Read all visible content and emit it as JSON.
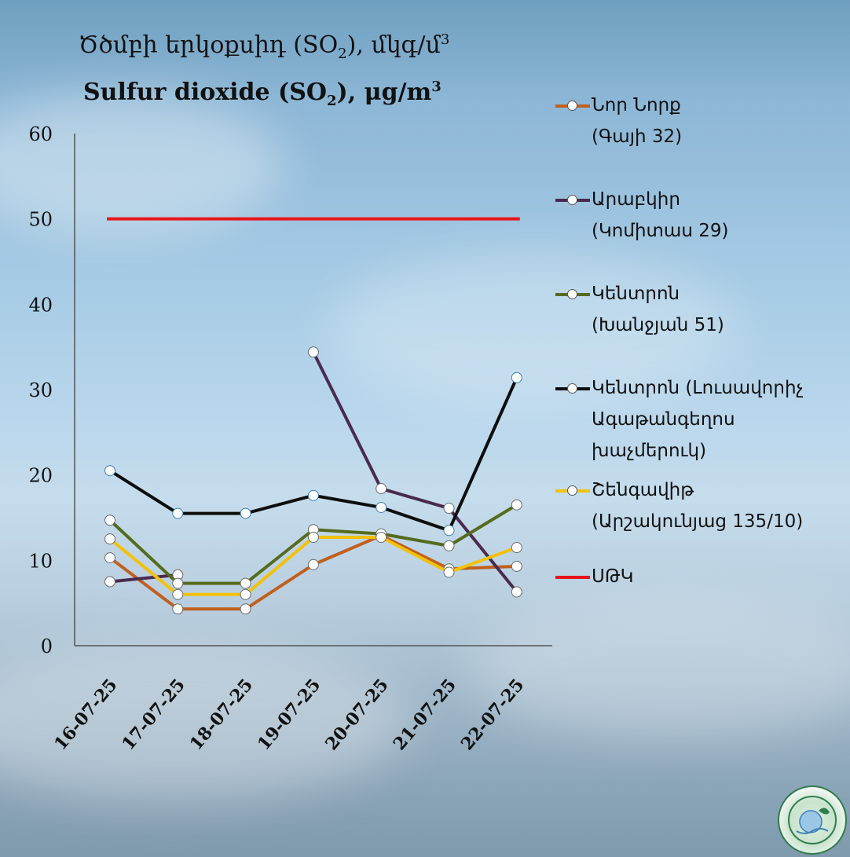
{
  "title": {
    "line1_prefix": "Ծծմբի երկօքսիդ (SO",
    "line1_suffix": "), մկգ/մ",
    "line2_prefix": "Sulfur dioxide (SO",
    "line2_suffix": "), μg/m",
    "subscript": "2",
    "superscript": "3"
  },
  "chart_data": {
    "type": "line",
    "categories": [
      "16-07-25",
      "17-07-25",
      "18-07-25",
      "19-07-25",
      "20-07-25",
      "21-07-25",
      "22-07-25"
    ],
    "ylim": [
      0,
      60
    ],
    "yticks": [
      0,
      10,
      20,
      30,
      40,
      50,
      60
    ],
    "grid": false,
    "legend_position": "right",
    "series": [
      {
        "name": "Նոր Նորք\n(Գայի 32)",
        "color": "#c0601f",
        "values": [
          10.3,
          4.3,
          4.3,
          9.5,
          12.9,
          9.0,
          9.3
        ]
      },
      {
        "name": "Արաբկիր\n(Կոմիտաս 29)",
        "color": "#4a2a4e",
        "values": [
          7.5,
          8.3,
          null,
          34.4,
          18.4,
          16.1,
          6.3
        ]
      },
      {
        "name": "Կենտրոն\n(Խանջյան 51)",
        "color": "#556b1e",
        "values": [
          14.7,
          7.3,
          7.3,
          13.6,
          13.1,
          11.7,
          16.5
        ]
      },
      {
        "name": "Կենտրոն (Լուսավորիչ\nԱգաթանգեղոս\nխաչմերուկ)",
        "color": "#0d0d0d",
        "values": [
          20.5,
          15.5,
          15.5,
          17.6,
          16.2,
          13.5,
          31.4
        ]
      },
      {
        "name": "Շենգավիթ\n(Արշակունյաց 135/10)",
        "color": "#f2c10a",
        "values": [
          12.5,
          6.0,
          6.0,
          12.7,
          12.7,
          8.6,
          11.5
        ]
      }
    ],
    "reference_line": {
      "name": "ՍԹԿ",
      "value": 50,
      "color": "#e8151b"
    }
  },
  "logo": {
    "icon": "organization-seal"
  }
}
